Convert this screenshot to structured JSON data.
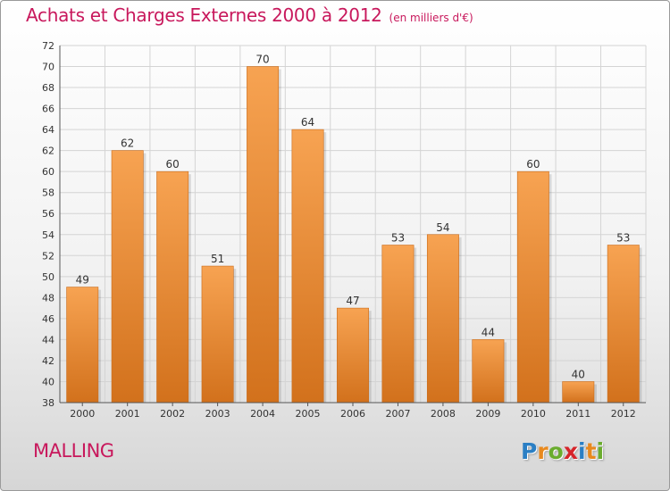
{
  "title": {
    "main": "Achats et Charges Externes 2000 à 2012",
    "unit": "(en milliers d'€)"
  },
  "commune": "MALLING",
  "logo": {
    "text": "Proxiti",
    "letters": [
      {
        "ch": "P",
        "color": "#2b7fc4"
      },
      {
        "ch": "r",
        "color": "#e8891e"
      },
      {
        "ch": "o",
        "color": "#6aac2e"
      },
      {
        "ch": "x",
        "color": "#d6242a"
      },
      {
        "ch": "i",
        "color": "#2b7fc4"
      },
      {
        "ch": "t",
        "color": "#e8891e"
      },
      {
        "ch": "i",
        "color": "#6aac2e"
      }
    ]
  },
  "colors": {
    "accent": "#c8185c",
    "bar_light": "#f7a352",
    "bar_dark": "#d2711c",
    "grid": "#d4d4d4",
    "axis_text": "#333333"
  },
  "chart_data": {
    "type": "bar",
    "title": "Achats et Charges Externes 2000 à 2012",
    "subtitle": "(en milliers d'€)",
    "categories": [
      "2000",
      "2001",
      "2002",
      "2003",
      "2004",
      "2005",
      "2006",
      "2007",
      "2008",
      "2009",
      "2010",
      "2011",
      "2012"
    ],
    "values": [
      49,
      62,
      60,
      51,
      70,
      64,
      47,
      53,
      54,
      44,
      60,
      40,
      53
    ],
    "ylim": [
      38,
      72
    ],
    "yticks": [
      38,
      40,
      42,
      44,
      46,
      48,
      50,
      52,
      54,
      56,
      58,
      60,
      62,
      64,
      66,
      68,
      70,
      72
    ],
    "grid": true,
    "data_labels": true,
    "xlabel": "",
    "ylabel": ""
  }
}
